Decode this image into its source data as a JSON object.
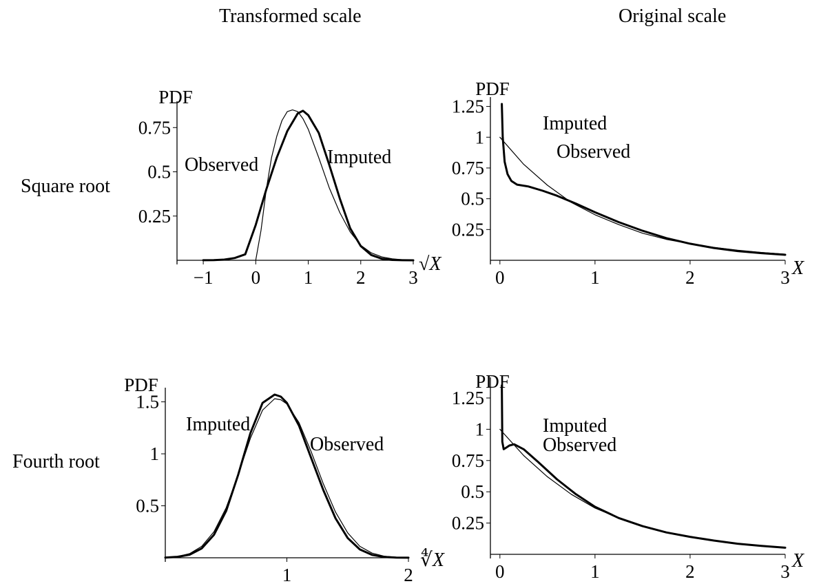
{
  "headers": {
    "transformed": "Transformed scale",
    "original": "Original scale"
  },
  "rows": {
    "square": "Square root",
    "fourth": "Fourth root"
  },
  "chart_data": [
    {
      "type": "line",
      "ylabel": "PDF",
      "xlabel": "√X",
      "xlim": [
        -1.5,
        3
      ],
      "ylim": [
        0,
        0.86
      ],
      "xticks": [
        -1,
        0,
        1,
        2,
        3
      ],
      "xtick_labels": [
        "−1",
        "0",
        "1",
        "2",
        "3"
      ],
      "yticks": [
        0.25,
        0.5,
        0.75
      ],
      "ytick_labels": [
        "0.25",
        "0.5",
        "0.75"
      ],
      "series": [
        {
          "name": "Observed",
          "line": "thin",
          "x": [
            0,
            0.1,
            0.2,
            0.3,
            0.4,
            0.5,
            0.6,
            0.7,
            0.8,
            0.9,
            1.0,
            1.2,
            1.4,
            1.6,
            1.8,
            2.0,
            2.2,
            2.4,
            2.6,
            2.8,
            3.0
          ],
          "y": [
            0,
            0.17,
            0.4,
            0.58,
            0.7,
            0.79,
            0.84,
            0.85,
            0.84,
            0.8,
            0.74,
            0.58,
            0.41,
            0.27,
            0.16,
            0.085,
            0.042,
            0.019,
            0.008,
            0.003,
            0.001
          ]
        },
        {
          "name": "Imputed",
          "line": "thick",
          "x": [
            -1,
            -0.8,
            -0.6,
            -0.4,
            -0.2,
            0,
            0.2,
            0.4,
            0.6,
            0.8,
            0.9,
            1.0,
            1.2,
            1.4,
            1.6,
            1.8,
            2.0,
            2.2,
            2.4,
            2.6,
            2.8,
            3.0
          ],
          "y": [
            0.0004,
            0.0012,
            0.004,
            0.013,
            0.034,
            0.2,
            0.4,
            0.58,
            0.73,
            0.83,
            0.845,
            0.82,
            0.72,
            0.54,
            0.35,
            0.18,
            0.08,
            0.03,
            0.009,
            0.002,
            0.0005,
            0.0001
          ]
        }
      ],
      "annotations": [
        "Observed",
        "Imputed"
      ]
    },
    {
      "type": "line",
      "ylabel": "PDF",
      "xlabel": "X",
      "xlim": [
        -0.1,
        3
      ],
      "ylim": [
        0,
        1.27
      ],
      "xticks": [
        0,
        1,
        2,
        3
      ],
      "xtick_labels": [
        "0",
        "1",
        "2",
        "3"
      ],
      "yticks": [
        0.25,
        0.5,
        0.75,
        1,
        1.25
      ],
      "ytick_labels": [
        "0.25",
        "0.5",
        "0.75",
        "1",
        "1.25"
      ],
      "series": [
        {
          "name": "Observed",
          "line": "thin",
          "x": [
            0,
            0.25,
            0.5,
            0.75,
            1.0,
            1.25,
            1.5,
            1.75,
            2.0,
            2.25,
            2.5,
            2.75,
            3.0
          ],
          "y": [
            1.0,
            0.78,
            0.61,
            0.47,
            0.37,
            0.29,
            0.22,
            0.17,
            0.135,
            0.105,
            0.082,
            0.064,
            0.05
          ]
        },
        {
          "name": "Imputed",
          "line": "thick",
          "x": [
            0.02,
            0.03,
            0.05,
            0.08,
            0.12,
            0.18,
            0.3,
            0.45,
            0.6,
            0.8,
            1.0,
            1.25,
            1.5,
            1.75,
            2.0,
            2.25,
            2.5,
            2.75,
            3.0
          ],
          "y": [
            1.27,
            1.0,
            0.8,
            0.7,
            0.645,
            0.615,
            0.6,
            0.565,
            0.525,
            0.46,
            0.39,
            0.31,
            0.24,
            0.18,
            0.135,
            0.1,
            0.075,
            0.058,
            0.045
          ]
        }
      ],
      "annotations": [
        "Imputed",
        "Observed"
      ]
    },
    {
      "type": "line",
      "ylabel": "PDF",
      "xlabel": "∜X",
      "xlim": [
        0,
        2
      ],
      "ylim": [
        0,
        1.57
      ],
      "xticks": [
        1,
        2
      ],
      "xtick_labels": [
        "1",
        "2"
      ],
      "yticks": [
        0.5,
        1,
        1.5
      ],
      "ytick_labels": [
        "0.5",
        "1",
        "1.5"
      ],
      "series": [
        {
          "name": "Observed",
          "line": "thin",
          "x": [
            0,
            0.1,
            0.2,
            0.3,
            0.4,
            0.5,
            0.6,
            0.7,
            0.8,
            0.9,
            0.95,
            1.0,
            1.1,
            1.2,
            1.3,
            1.4,
            1.5,
            1.6,
            1.7,
            1.8,
            1.9,
            2.0
          ],
          "y": [
            0.003,
            0.012,
            0.04,
            0.11,
            0.25,
            0.48,
            0.8,
            1.15,
            1.42,
            1.53,
            1.52,
            1.48,
            1.3,
            1.02,
            0.71,
            0.44,
            0.24,
            0.11,
            0.045,
            0.015,
            0.005,
            0.001
          ]
        },
        {
          "name": "Imputed",
          "line": "thick",
          "x": [
            0,
            0.1,
            0.2,
            0.3,
            0.4,
            0.5,
            0.6,
            0.7,
            0.8,
            0.9,
            0.95,
            1.0,
            1.1,
            1.2,
            1.3,
            1.4,
            1.5,
            1.6,
            1.7,
            1.8,
            1.9,
            2.0
          ],
          "y": [
            0.002,
            0.009,
            0.03,
            0.09,
            0.22,
            0.45,
            0.8,
            1.2,
            1.49,
            1.57,
            1.55,
            1.49,
            1.27,
            0.96,
            0.65,
            0.38,
            0.19,
            0.08,
            0.028,
            0.008,
            0.002,
            0.0005
          ]
        }
      ],
      "annotations": [
        "Imputed",
        "Observed"
      ]
    },
    {
      "type": "line",
      "ylabel": "PDF",
      "xlabel": "X",
      "xlim": [
        -0.1,
        3
      ],
      "ylim": [
        0,
        1.36
      ],
      "xticks": [
        0,
        1,
        2,
        3
      ],
      "xtick_labels": [
        "0",
        "1",
        "2",
        "3"
      ],
      "yticks": [
        0.25,
        0.5,
        0.75,
        1,
        1.25
      ],
      "ytick_labels": [
        "0.25",
        "0.5",
        "0.75",
        "1",
        "1.25"
      ],
      "series": [
        {
          "name": "Observed",
          "line": "thin",
          "x": [
            0,
            0.25,
            0.5,
            0.75,
            1.0,
            1.25,
            1.5,
            1.75,
            2.0,
            2.25,
            2.5,
            2.75,
            3.0
          ],
          "y": [
            1.0,
            0.79,
            0.62,
            0.48,
            0.37,
            0.29,
            0.225,
            0.175,
            0.14,
            0.11,
            0.085,
            0.067,
            0.052
          ]
        },
        {
          "name": "Imputed",
          "line": "thick",
          "x": [
            0.02,
            0.025,
            0.04,
            0.06,
            0.1,
            0.15,
            0.25,
            0.4,
            0.6,
            0.8,
            1.0,
            1.25,
            1.5,
            1.75,
            2.0,
            2.25,
            2.5,
            2.75,
            3.0
          ],
          "y": [
            1.35,
            0.9,
            0.84,
            0.85,
            0.87,
            0.88,
            0.84,
            0.74,
            0.6,
            0.48,
            0.38,
            0.29,
            0.225,
            0.175,
            0.14,
            0.11,
            0.085,
            0.067,
            0.053
          ]
        }
      ],
      "annotations": [
        "Imputed",
        "Observed"
      ]
    }
  ]
}
